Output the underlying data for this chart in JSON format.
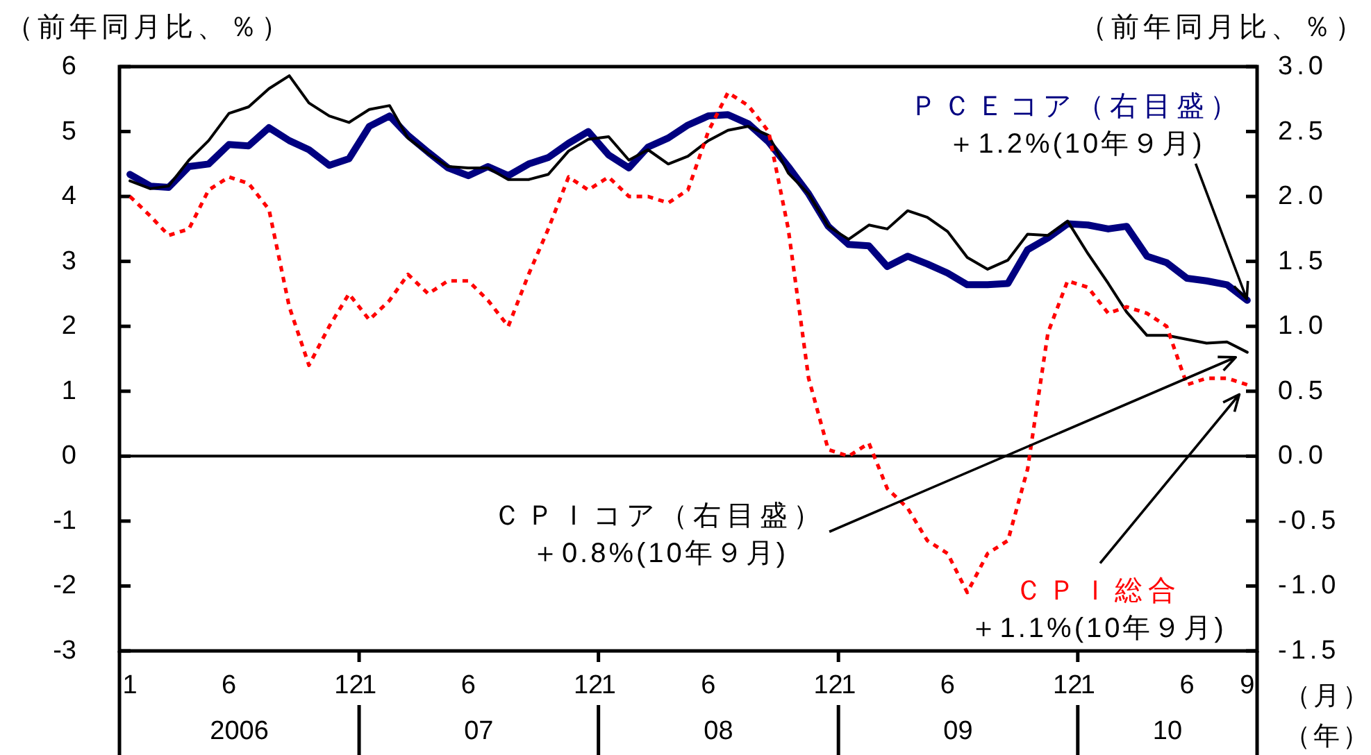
{
  "chart_data": {
    "type": "line",
    "x": [
      "2006-01",
      "2006-02",
      "2006-03",
      "2006-04",
      "2006-05",
      "2006-06",
      "2006-07",
      "2006-08",
      "2006-09",
      "2006-10",
      "2006-11",
      "2006-12",
      "2007-01",
      "2007-02",
      "2007-03",
      "2007-04",
      "2007-05",
      "2007-06",
      "2007-07",
      "2007-08",
      "2007-09",
      "2007-10",
      "2007-11",
      "2007-12",
      "2008-01",
      "2008-02",
      "2008-03",
      "2008-04",
      "2008-05",
      "2008-06",
      "2008-07",
      "2008-08",
      "2008-09",
      "2008-10",
      "2008-11",
      "2008-12",
      "2009-01",
      "2009-02",
      "2009-03",
      "2009-04",
      "2009-05",
      "2009-06",
      "2009-07",
      "2009-08",
      "2009-09",
      "2009-10",
      "2009-11",
      "2009-12",
      "2010-01",
      "2010-02",
      "2010-03",
      "2010-04",
      "2010-05",
      "2010-06",
      "2010-07",
      "2010-08",
      "2010-09"
    ],
    "xlim": [
      "2005-12-16",
      "2010-09-16"
    ],
    "xticks": [
      {
        "value": "2006-01",
        "label": "1"
      },
      {
        "value": "2006-06",
        "label": "6"
      },
      {
        "value": "2006-12",
        "label": "12"
      },
      {
        "value": "2007-01",
        "label": "1"
      },
      {
        "value": "2007-06",
        "label": "6"
      },
      {
        "value": "2007-12",
        "label": "12"
      },
      {
        "value": "2008-01",
        "label": "1"
      },
      {
        "value": "2008-06",
        "label": "6"
      },
      {
        "value": "2008-12",
        "label": "12"
      },
      {
        "value": "2009-01",
        "label": "1"
      },
      {
        "value": "2009-06",
        "label": "6"
      },
      {
        "value": "2009-12",
        "label": "12"
      },
      {
        "value": "2010-01",
        "label": "1"
      },
      {
        "value": "2010-06",
        "label": "6"
      },
      {
        "value": "2010-09",
        "label": "9"
      }
    ],
    "xlabel": "（月）",
    "ylabel": "（前年同月比、％）",
    "y2label": "（前年同月比、％）",
    "ylim": [
      -3,
      6
    ],
    "yticks": [
      -3,
      -2,
      -1,
      0,
      1,
      2,
      3,
      4,
      5,
      6
    ],
    "y2lim": [
      -1.5,
      3
    ],
    "y2ticks": [
      -1.5,
      {
        "value": -1,
        "label": "-1.0"
      },
      -0.5,
      {
        "value": 0,
        "label": "0.0"
      },
      0.5,
      {
        "value": 1,
        "label": "1.0"
      },
      1.5,
      {
        "value": 2,
        "label": "2.0"
      },
      2.5,
      {
        "value": 3,
        "label": "3.0"
      }
    ],
    "series": [
      {
        "name": "ＰＣＥコア（右目盛）",
        "color": "#000080",
        "axis": "y2",
        "line_style": "solid",
        "values": [
          2.17,
          2.08,
          2.07,
          2.23,
          2.25,
          2.4,
          2.39,
          2.53,
          2.43,
          2.36,
          2.24,
          2.29,
          2.54,
          2.62,
          2.47,
          2.34,
          2.22,
          2.16,
          2.23,
          2.16,
          2.25,
          2.3,
          2.41,
          2.5,
          2.32,
          2.22,
          2.38,
          2.45,
          2.55,
          2.62,
          2.63,
          2.56,
          2.42,
          2.23,
          2.02,
          1.77,
          1.63,
          1.62,
          1.46,
          1.54,
          1.48,
          1.41,
          1.32,
          1.32,
          1.33,
          1.59,
          1.68,
          1.79,
          1.78,
          1.75,
          1.77,
          1.54,
          1.49,
          1.37,
          1.35,
          1.32,
          1.2
        ]
      },
      {
        "name": "ＣＰＩコア（右目盛）",
        "color": "#000000",
        "axis": "y2",
        "line_style": "solid",
        "values": [
          2.12,
          2.06,
          2.08,
          2.28,
          2.43,
          2.64,
          2.69,
          2.83,
          2.93,
          2.72,
          2.62,
          2.57,
          2.67,
          2.7,
          2.45,
          2.33,
          2.23,
          2.22,
          2.22,
          2.13,
          2.13,
          2.17,
          2.35,
          2.44,
          2.46,
          2.28,
          2.36,
          2.25,
          2.31,
          2.43,
          2.51,
          2.54,
          2.47,
          2.18,
          2.02,
          1.77,
          1.67,
          1.78,
          1.75,
          1.89,
          1.84,
          1.73,
          1.53,
          1.44,
          1.51,
          1.71,
          1.7,
          1.81,
          1.56,
          1.33,
          1.11,
          0.93,
          0.93,
          0.9,
          0.87,
          0.88,
          0.8
        ]
      },
      {
        "name": "ＣＰＩ総合",
        "color": "#ff0000",
        "axis": "y",
        "line_style": "dotted",
        "values": [
          4.0,
          3.7,
          3.4,
          3.5,
          4.1,
          4.3,
          4.2,
          3.8,
          2.3,
          1.4,
          2.0,
          2.5,
          2.1,
          2.4,
          2.8,
          2.5,
          2.7,
          2.7,
          2.4,
          2.0,
          2.8,
          3.5,
          4.3,
          4.1,
          4.3,
          4.0,
          4.0,
          3.9,
          4.1,
          5.0,
          5.6,
          5.4,
          5.0,
          3.5,
          1.2,
          0.1,
          0.0,
          0.2,
          -0.5,
          -0.8,
          -1.3,
          -1.5,
          -2.1,
          -1.5,
          -1.3,
          -0.2,
          1.9,
          2.7,
          2.6,
          2.2,
          2.3,
          2.2,
          2.0,
          1.1,
          1.2,
          1.2,
          1.1
        ]
      }
    ],
    "ref_lines": [
      {
        "axis": "y",
        "value": 0
      }
    ],
    "annotations": [
      {
        "text": "＋1.2%(10年９月)",
        "x": "2010-09",
        "y": 2.4
      },
      "＋0.8%(10年９月)",
      "＋1.1%(10年９月)",
      "2006",
      "07",
      "08",
      "09",
      "10",
      "（年）"
    ]
  }
}
